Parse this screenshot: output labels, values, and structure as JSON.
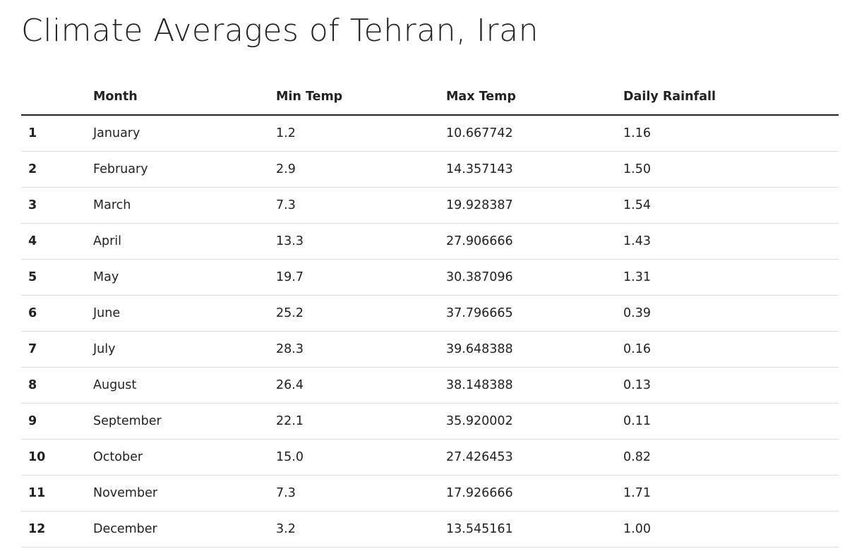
{
  "page": {
    "title": "Climate Averages of Tehran, Iran"
  },
  "table": {
    "headers": [
      "",
      "Month",
      "Min Temp",
      "Max Temp",
      "Daily Rainfall"
    ],
    "rows": [
      {
        "index": "1",
        "month": "January",
        "min_temp": "1.2",
        "max_temp": "10.667742",
        "daily_rainfall": "1.16"
      },
      {
        "index": "2",
        "month": "February",
        "min_temp": "2.9",
        "max_temp": "14.357143",
        "daily_rainfall": "1.50"
      },
      {
        "index": "3",
        "month": "March",
        "min_temp": "7.3",
        "max_temp": "19.928387",
        "daily_rainfall": "1.54"
      },
      {
        "index": "4",
        "month": "April",
        "min_temp": "13.3",
        "max_temp": "27.906666",
        "daily_rainfall": "1.43"
      },
      {
        "index": "5",
        "month": "May",
        "min_temp": "19.7",
        "max_temp": "30.387096",
        "daily_rainfall": "1.31"
      },
      {
        "index": "6",
        "month": "June",
        "min_temp": "25.2",
        "max_temp": "37.796665",
        "daily_rainfall": "0.39"
      },
      {
        "index": "7",
        "month": "July",
        "min_temp": "28.3",
        "max_temp": "39.648388",
        "daily_rainfall": "0.16"
      },
      {
        "index": "8",
        "month": "August",
        "min_temp": "26.4",
        "max_temp": "38.148388",
        "daily_rainfall": "0.13"
      },
      {
        "index": "9",
        "month": "September",
        "min_temp": "22.1",
        "max_temp": "35.920002",
        "daily_rainfall": "0.11"
      },
      {
        "index": "10",
        "month": "October",
        "min_temp": "15.0",
        "max_temp": "27.426453",
        "daily_rainfall": "0.82"
      },
      {
        "index": "11",
        "month": "November",
        "min_temp": "7.3",
        "max_temp": "17.926666",
        "daily_rainfall": "1.71"
      },
      {
        "index": "12",
        "month": "December",
        "min_temp": "3.2",
        "max_temp": "13.545161",
        "daily_rainfall": "1.00"
      }
    ]
  }
}
